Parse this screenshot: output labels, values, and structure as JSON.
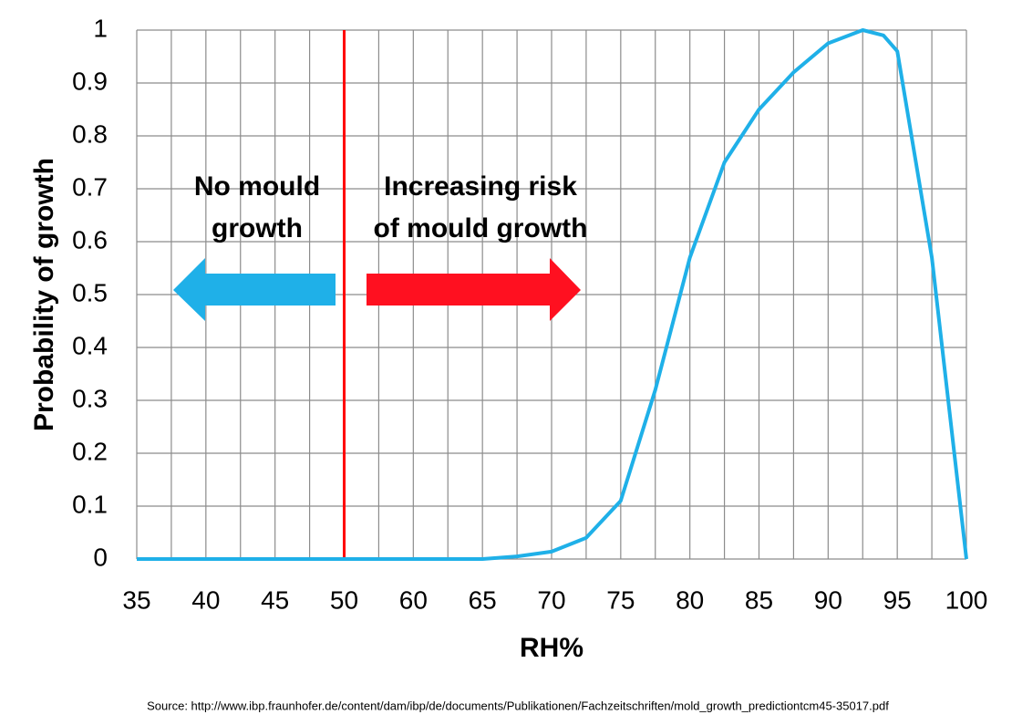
{
  "chart_data": {
    "type": "line",
    "ylabel": "Probability of growth",
    "xlabel": "RH%",
    "x": [
      35,
      50,
      60,
      65,
      67.5,
      70,
      72.5,
      75,
      77.5,
      80,
      82.5,
      85,
      87.5,
      90,
      92.5,
      94,
      95,
      97.5,
      100
    ],
    "values": [
      0,
      0,
      0,
      0,
      0.005,
      0.014,
      0.04,
      0.11,
      0.32,
      0.57,
      0.75,
      0.85,
      0.92,
      0.975,
      1.0,
      0.99,
      0.96,
      0.57,
      0
    ],
    "color": "#1fb0e8",
    "xlim": [
      35,
      100
    ],
    "xticks": [
      35,
      40,
      45,
      50,
      60,
      65,
      70,
      75,
      80,
      85,
      90,
      95,
      100
    ],
    "ylim": [
      0,
      1
    ],
    "yticks": [
      0,
      0.1,
      0.2,
      0.3,
      0.4,
      0.5,
      0.6,
      0.7,
      0.8,
      0.9,
      1
    ],
    "grid": true,
    "reference_line": {
      "x": 50,
      "color": "#ff0000"
    },
    "annotations": [
      [
        "No mould",
        "growth"
      ],
      [
        "Increasing risk",
        "of mould growth"
      ]
    ],
    "source": "Source: http://www.ibp.fraunhofer.de/content/dam/ibp/de/documents/Publikationen/Fachzeitschriften/mold_growth_predictiontcm45-35017.pdf"
  }
}
